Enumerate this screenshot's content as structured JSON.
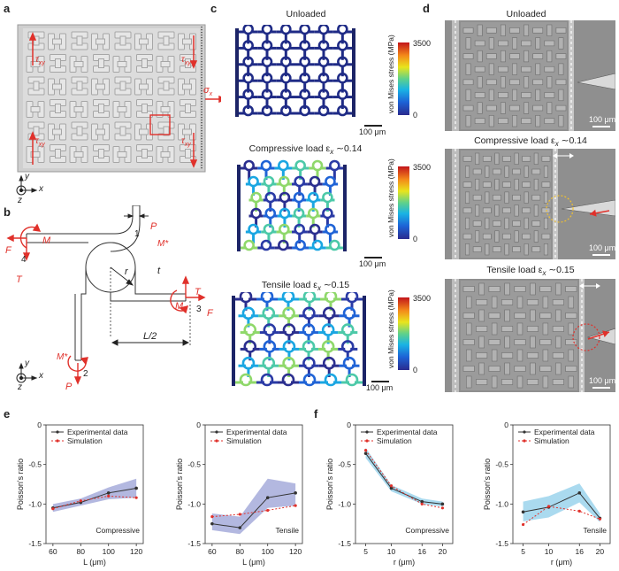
{
  "panels": {
    "a": "a",
    "b": "b",
    "c": "c",
    "d": "d",
    "e": "e",
    "f": "f"
  },
  "panel_a": {
    "labels": {
      "tau_xy": "τ",
      "tau_sub": "xy",
      "sigma": "σ",
      "sigma_sub": "x"
    },
    "axes": {
      "y": "y",
      "x": "x",
      "z": "z"
    }
  },
  "panel_b": {
    "labels": {
      "P": "P",
      "M": "M",
      "Mstar": "M*",
      "F": "F",
      "T": "T",
      "t": "t",
      "r": "r",
      "Lhalf": "L/2",
      "n1": "1",
      "n2": "2",
      "n3": "3",
      "n4": "4"
    },
    "axes": {
      "y": "y",
      "x": "x",
      "z": "z"
    }
  },
  "panel_c": {
    "titles": [
      "Unloaded",
      "Compressive load ε",
      "Tensile load ε"
    ],
    "strain_sub": "x",
    "strain_vals": [
      "∼0.14",
      "∼0.15"
    ],
    "colorbar": {
      "label": "von Mises stress (MPa)",
      "max": "3500",
      "min": "0"
    },
    "scalebar": "100 μm"
  },
  "panel_d": {
    "titles": [
      "Unloaded",
      "Compressive load ε",
      "Tensile load ε"
    ],
    "strain_vals": [
      "∼0.14",
      "∼0.15"
    ],
    "scalebar": "100 μm"
  },
  "legend": {
    "exp": "Experimental data",
    "sim": "Simulation"
  },
  "colors": {
    "exp": "#333333",
    "sim": "#e0312b",
    "band_e": "#9aa0d6",
    "band_f": "#8ecde9",
    "red": "#e0312b"
  },
  "chart_data": [
    {
      "type": "line",
      "panel": "e",
      "title": "",
      "annotation": "Compressive",
      "xlabel": "L (μm)",
      "ylabel": "Poisson's ratio",
      "x": [
        60,
        80,
        100,
        120
      ],
      "xlim": [
        55,
        125
      ],
      "ylim": [
        -1.5,
        0
      ],
      "yticks": [
        -1.5,
        -1.0,
        -0.5,
        0
      ],
      "series": [
        {
          "name": "Experimental data",
          "values": [
            -1.05,
            -0.98,
            -0.86,
            -0.8
          ],
          "lo": [
            -1.1,
            -1.02,
            -0.94,
            -0.92
          ],
          "hi": [
            -1.0,
            -0.93,
            -0.79,
            -0.68
          ]
        },
        {
          "name": "Simulation",
          "values": [
            -1.06,
            -0.96,
            -0.9,
            -0.92
          ]
        }
      ]
    },
    {
      "type": "line",
      "panel": "e",
      "title": "",
      "annotation": "Tensile",
      "xlabel": "L (μm)",
      "ylabel": "Poisson's ratio",
      "x": [
        60,
        80,
        100,
        120
      ],
      "xlim": [
        55,
        125
      ],
      "ylim": [
        -1.5,
        0
      ],
      "yticks": [
        -1.5,
        -1.0,
        -0.5,
        0
      ],
      "series": [
        {
          "name": "Experimental data",
          "values": [
            -1.25,
            -1.3,
            -0.92,
            -0.86
          ],
          "lo": [
            -1.33,
            -1.38,
            -1.05,
            -1.02
          ],
          "hi": [
            -1.12,
            -1.16,
            -0.68,
            -0.74
          ]
        },
        {
          "name": "Simulation",
          "values": [
            -1.16,
            -1.13,
            -1.08,
            -1.02
          ]
        }
      ]
    },
    {
      "type": "line",
      "panel": "f",
      "title": "",
      "annotation": "Compressive",
      "xlabel": "r (μm)",
      "ylabel": "Poisson's ratio",
      "x": [
        5,
        10,
        16,
        20
      ],
      "xlim": [
        3,
        22
      ],
      "ylim": [
        -1.5,
        0
      ],
      "yticks": [
        -1.5,
        -1.0,
        -0.5,
        0
      ],
      "series": [
        {
          "name": "Experimental data",
          "values": [
            -0.36,
            -0.8,
            -0.97,
            -1.0
          ],
          "lo": [
            -0.42,
            -0.84,
            -1.0,
            -1.03
          ],
          "hi": [
            -0.29,
            -0.76,
            -0.93,
            -0.97
          ]
        },
        {
          "name": "Simulation",
          "values": [
            -0.32,
            -0.77,
            -1.0,
            -1.05
          ]
        }
      ]
    },
    {
      "type": "line",
      "panel": "f",
      "title": "",
      "annotation": "Tensile",
      "xlabel": "r (μm)",
      "ylabel": "Poisson's ratio",
      "x": [
        5,
        10,
        16,
        20
      ],
      "xlim": [
        3,
        22
      ],
      "ylim": [
        -1.5,
        0
      ],
      "yticks": [
        -1.5,
        -1.0,
        -0.5,
        0
      ],
      "series": [
        {
          "name": "Experimental data",
          "values": [
            -1.1,
            -1.04,
            -0.86,
            -1.18
          ],
          "lo": [
            -1.22,
            -1.17,
            -0.98,
            -1.23
          ],
          "hi": [
            -0.97,
            -0.9,
            -0.74,
            -1.12
          ]
        },
        {
          "name": "Simulation",
          "values": [
            -1.26,
            -1.03,
            -1.09,
            -1.19
          ]
        }
      ]
    }
  ]
}
